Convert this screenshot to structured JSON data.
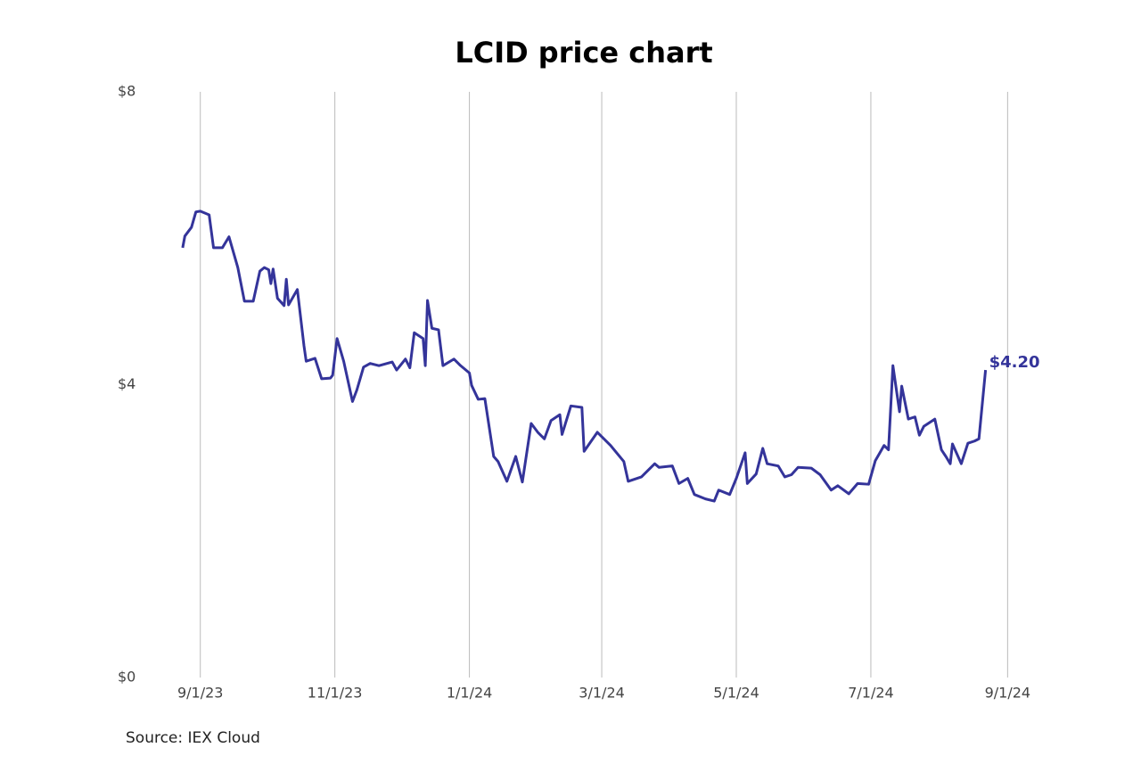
{
  "chart_data": {
    "type": "line",
    "title": "LCID price chart",
    "source": "Source: IEX Cloud",
    "xlim": [
      "2023-08-01",
      "2024-09-15"
    ],
    "xticks": [
      {
        "value": "2023-09-01",
        "label": "9/1/23"
      },
      {
        "value": "2023-11-01",
        "label": "11/1/23"
      },
      {
        "value": "2024-01-01",
        "label": "1/1/24"
      },
      {
        "value": "2024-03-01",
        "label": "3/1/24"
      },
      {
        "value": "2024-05-01",
        "label": "5/1/24"
      },
      {
        "value": "2024-07-01",
        "label": "7/1/24"
      },
      {
        "value": "2024-09-01",
        "label": "9/1/24"
      }
    ],
    "ylim": [
      0,
      8
    ],
    "yticks": [
      {
        "value": 0,
        "label": "$0"
      },
      {
        "value": 4,
        "label": "$4"
      },
      {
        "value": 8,
        "label": "$8"
      }
    ],
    "grid": "x",
    "x": [
      "2023-08-24",
      "2023-08-25",
      "2023-08-28",
      "2023-08-30",
      "2023-09-01",
      "2023-09-05",
      "2023-09-07",
      "2023-09-11",
      "2023-09-14",
      "2023-09-18",
      "2023-09-21",
      "2023-09-25",
      "2023-09-28",
      "2023-09-30",
      "2023-10-02",
      "2023-10-03",
      "2023-10-04",
      "2023-10-06",
      "2023-10-09",
      "2023-10-10",
      "2023-10-11",
      "2023-10-15",
      "2023-10-18",
      "2023-10-19",
      "2023-10-23",
      "2023-10-26",
      "2023-10-30",
      "2023-10-31",
      "2023-11-02",
      "2023-11-05",
      "2023-11-09",
      "2023-11-11",
      "2023-11-14",
      "2023-11-17",
      "2023-11-21",
      "2023-11-27",
      "2023-11-29",
      "2023-12-03",
      "2023-12-05",
      "2023-12-07",
      "2023-12-11",
      "2023-12-12",
      "2023-12-13",
      "2023-12-15",
      "2023-12-18",
      "2023-12-20",
      "2023-12-25",
      "2023-12-28",
      "2024-01-01",
      "2024-01-02",
      "2024-01-05",
      "2024-01-08",
      "2024-01-12",
      "2024-01-14",
      "2024-01-18",
      "2024-01-22",
      "2024-01-25",
      "2024-01-29",
      "2024-02-01",
      "2024-02-04",
      "2024-02-07",
      "2024-02-11",
      "2024-02-12",
      "2024-02-16",
      "2024-02-21",
      "2024-02-22",
      "2024-02-28",
      "2024-03-05",
      "2024-03-11",
      "2024-03-13",
      "2024-03-19",
      "2024-03-25",
      "2024-03-27",
      "2024-04-02",
      "2024-04-05",
      "2024-04-09",
      "2024-04-12",
      "2024-04-17",
      "2024-04-21",
      "2024-04-23",
      "2024-04-28",
      "2024-05-01",
      "2024-05-05",
      "2024-05-06",
      "2024-05-10",
      "2024-05-13",
      "2024-05-15",
      "2024-05-20",
      "2024-05-23",
      "2024-05-26",
      "2024-05-29",
      "2024-06-04",
      "2024-06-08",
      "2024-06-13",
      "2024-06-16",
      "2024-06-21",
      "2024-06-25",
      "2024-06-30",
      "2024-07-03",
      "2024-07-07",
      "2024-07-09",
      "2024-07-11",
      "2024-07-14",
      "2024-07-15",
      "2024-07-18",
      "2024-07-21",
      "2024-07-23",
      "2024-07-25",
      "2024-07-30",
      "2024-08-02",
      "2024-08-04",
      "2024-08-06",
      "2024-08-07",
      "2024-08-11",
      "2024-08-14",
      "2024-08-17",
      "2024-08-19",
      "2024-08-22"
    ],
    "series": [
      {
        "name": "LCID",
        "color": "#34349a",
        "values": [
          5.87,
          6.03,
          6.15,
          6.36,
          6.37,
          6.32,
          5.87,
          5.87,
          6.02,
          5.6,
          5.14,
          5.14,
          5.55,
          5.6,
          5.57,
          5.38,
          5.58,
          5.18,
          5.08,
          5.44,
          5.09,
          5.3,
          4.53,
          4.32,
          4.36,
          4.08,
          4.09,
          4.13,
          4.63,
          4.32,
          3.77,
          3.93,
          4.24,
          4.29,
          4.26,
          4.31,
          4.2,
          4.35,
          4.23,
          4.71,
          4.63,
          4.26,
          5.15,
          4.77,
          4.75,
          4.26,
          4.35,
          4.26,
          4.16,
          3.99,
          3.8,
          3.81,
          3.02,
          2.95,
          2.68,
          3.02,
          2.67,
          3.47,
          3.35,
          3.26,
          3.51,
          3.59,
          3.32,
          3.71,
          3.69,
          3.09,
          3.35,
          3.17,
          2.95,
          2.68,
          2.74,
          2.92,
          2.87,
          2.89,
          2.65,
          2.72,
          2.5,
          2.44,
          2.41,
          2.56,
          2.5,
          2.72,
          3.07,
          2.65,
          2.78,
          3.13,
          2.92,
          2.89,
          2.74,
          2.77,
          2.87,
          2.86,
          2.77,
          2.56,
          2.62,
          2.51,
          2.65,
          2.64,
          2.96,
          3.17,
          3.11,
          4.26,
          3.63,
          3.98,
          3.53,
          3.56,
          3.31,
          3.43,
          3.53,
          3.11,
          3.02,
          2.92,
          3.19,
          2.92,
          3.2,
          3.23,
          3.26,
          4.2
        ],
        "value_labels": [
          null,
          null,
          null,
          null,
          null,
          null,
          null,
          null,
          null,
          null,
          null,
          null,
          null,
          null,
          null,
          null,
          null,
          null,
          null,
          null,
          null,
          null,
          null,
          null,
          null,
          null,
          null,
          null,
          null,
          null,
          null,
          null,
          null,
          null,
          null,
          null,
          null,
          null,
          null,
          null,
          null,
          null,
          null,
          null,
          null,
          null,
          null,
          null,
          null,
          null,
          null,
          null,
          null,
          null,
          null,
          null,
          null,
          null,
          null,
          null,
          null,
          null,
          null,
          null,
          null,
          null,
          null,
          null,
          null,
          null,
          null,
          null,
          null,
          null,
          null,
          null,
          null,
          null,
          null,
          null,
          null,
          null,
          null,
          null,
          null,
          null,
          null,
          null,
          null,
          null,
          null,
          null,
          null,
          null,
          null,
          null,
          null,
          null,
          null,
          null,
          null,
          null,
          null,
          null,
          null,
          null,
          null,
          null,
          null,
          null,
          null,
          null,
          null,
          null,
          null,
          null,
          null,
          "$4.20"
        ]
      }
    ]
  }
}
